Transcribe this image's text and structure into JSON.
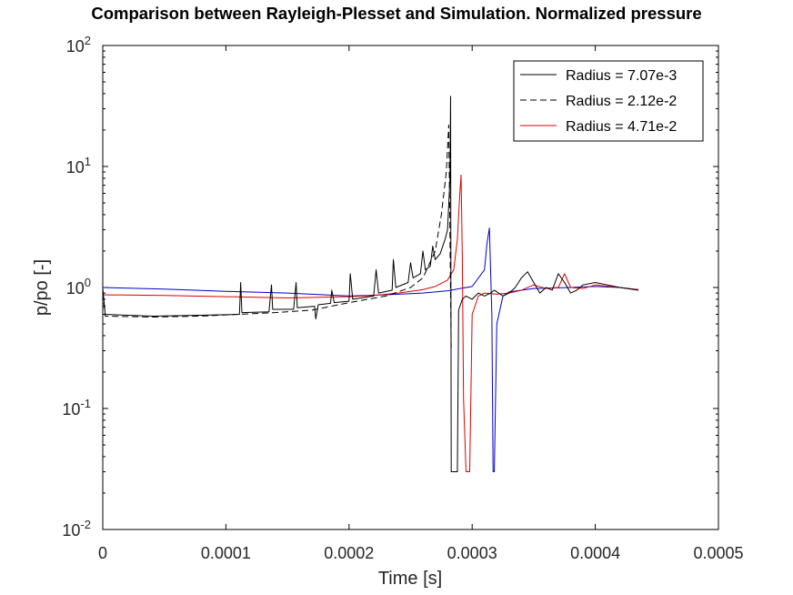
{
  "chart_data": {
    "type": "line",
    "title": "Comparison between Rayleigh-Plesset and Simulation. Normalized pressure",
    "xlabel": "Time [s]",
    "ylabel": "p/po [-]",
    "xlim": [
      0,
      0.0005
    ],
    "ylim": [
      0.01,
      100
    ],
    "yscale": "log",
    "grid": false,
    "legend_position": "top-right",
    "x_ticks": [
      "0",
      "0.0001",
      "0.0002",
      "0.0003",
      "0.0004",
      "0.0005"
    ],
    "y_ticks": [
      {
        "base": "10",
        "exp": "-2"
      },
      {
        "base": "10",
        "exp": "-1"
      },
      {
        "base": "10",
        "exp": "0"
      },
      {
        "base": "10",
        "exp": "1"
      },
      {
        "base": "10",
        "exp": "2"
      }
    ],
    "series": [
      {
        "name": "Radius =  7.07e-3",
        "color": "#000000",
        "dash": "solid",
        "points": [
          [
            0,
            0.99
          ],
          [
            2e-06,
            0.6
          ],
          [
            4e-05,
            0.58
          ],
          [
            8e-05,
            0.59
          ],
          [
            0.000111,
            0.6
          ],
          [
            0.000112,
            1.1
          ],
          [
            0.000113,
            0.62
          ],
          [
            0.000135,
            0.63
          ],
          [
            0.000137,
            1.05
          ],
          [
            0.000138,
            0.66
          ],
          [
            0.000155,
            0.66
          ],
          [
            0.000157,
            1.1
          ],
          [
            0.000158,
            0.68
          ],
          [
            0.000172,
            0.7
          ],
          [
            0.000173,
            0.55
          ],
          [
            0.000175,
            0.72
          ],
          [
            0.000185,
            0.74
          ],
          [
            0.000186,
            0.95
          ],
          [
            0.000188,
            0.75
          ],
          [
            0.0002,
            0.77
          ],
          [
            0.000201,
            1.3
          ],
          [
            0.000203,
            0.8
          ],
          [
            0.00022,
            0.85
          ],
          [
            0.000222,
            1.4
          ],
          [
            0.000224,
            0.9
          ],
          [
            0.000235,
            0.95
          ],
          [
            0.000236,
            1.7
          ],
          [
            0.000238,
            1.0
          ],
          [
            0.000248,
            1.1
          ],
          [
            0.00025,
            1.6
          ],
          [
            0.000252,
            1.2
          ],
          [
            0.000258,
            1.3
          ],
          [
            0.00026,
            2.0
          ],
          [
            0.000262,
            1.4
          ],
          [
            0.000266,
            1.5
          ],
          [
            0.000268,
            2.2
          ],
          [
            0.00027,
            1.7
          ],
          [
            0.000274,
            1.9
          ],
          [
            0.000278,
            2.5
          ],
          [
            0.00028,
            3.0
          ],
          [
            0.000282,
            8.0
          ],
          [
            0.0002825,
            38.0
          ],
          [
            0.000283,
            0.03
          ],
          [
            0.000288,
            0.03
          ],
          [
            0.000289,
            0.65
          ],
          [
            0.000292,
            0.8
          ],
          [
            0.000295,
            0.85
          ],
          [
            0.0003,
            0.8
          ],
          [
            0.000305,
            0.9
          ],
          [
            0.00031,
            0.85
          ],
          [
            0.000315,
            0.9
          ],
          [
            0.000318,
            0.95
          ],
          [
            0.000325,
            0.85
          ],
          [
            0.00033,
            0.9
          ],
          [
            0.000335,
            1.0
          ],
          [
            0.00034,
            1.2
          ],
          [
            0.000345,
            1.35
          ],
          [
            0.00035,
            1.1
          ],
          [
            0.000355,
            0.9
          ],
          [
            0.00036,
            1.0
          ],
          [
            0.000365,
            0.95
          ],
          [
            0.00037,
            1.3
          ],
          [
            0.000375,
            1.1
          ],
          [
            0.00038,
            0.9
          ],
          [
            0.000385,
            0.95
          ],
          [
            0.00039,
            1.05
          ],
          [
            0.0004,
            1.1
          ],
          [
            0.00041,
            1.05
          ],
          [
            0.00042,
            1.0
          ],
          [
            0.000435,
            0.95
          ]
        ]
      },
      {
        "name": "Radius =  2.12e-2",
        "color": "#000000",
        "dash": "dashed",
        "points": [
          [
            0,
            0.9
          ],
          [
            2e-06,
            0.58
          ],
          [
            4e-05,
            0.57
          ],
          [
            8e-05,
            0.58
          ],
          [
            0.00011,
            0.6
          ],
          [
            0.00014,
            0.62
          ],
          [
            0.00017,
            0.65
          ],
          [
            0.0002,
            0.75
          ],
          [
            0.00023,
            0.85
          ],
          [
            0.00025,
            1.0
          ],
          [
            0.00026,
            1.2
          ],
          [
            0.00027,
            2.0
          ],
          [
            0.000275,
            4.0
          ],
          [
            0.000279,
            9.0
          ],
          [
            0.000281,
            22.0
          ],
          [
            0.000283,
            0.3
          ]
        ]
      },
      {
        "name": "Radius =  4.71e-2",
        "color": "#dd0000",
        "dash": "solid",
        "points": [
          [
            0,
            0.87
          ],
          [
            5e-05,
            0.86
          ],
          [
            0.0001,
            0.84
          ],
          [
            0.00015,
            0.82
          ],
          [
            0.0002,
            0.84
          ],
          [
            0.00022,
            0.86
          ],
          [
            0.00024,
            0.9
          ],
          [
            0.00026,
            0.96
          ],
          [
            0.00027,
            1.02
          ],
          [
            0.00028,
            1.15
          ],
          [
            0.000285,
            1.4
          ],
          [
            0.000288,
            2.5
          ],
          [
            0.00029,
            6.0
          ],
          [
            0.000291,
            8.5
          ],
          [
            0.000292,
            1.8
          ],
          [
            0.000293,
            0.12
          ],
          [
            0.000295,
            0.03
          ],
          [
            0.000298,
            0.03
          ],
          [
            0.0003,
            0.6
          ],
          [
            0.000305,
            0.85
          ],
          [
            0.00031,
            0.9
          ],
          [
            0.00032,
            0.88
          ],
          [
            0.00033,
            0.9
          ],
          [
            0.00034,
            0.95
          ],
          [
            0.00035,
            1.05
          ],
          [
            0.00036,
            0.98
          ],
          [
            0.00037,
            1.0
          ],
          [
            0.000375,
            1.3
          ],
          [
            0.00038,
            1.0
          ],
          [
            0.00039,
            0.98
          ],
          [
            0.0004,
            1.05
          ],
          [
            0.00042,
            1.0
          ],
          [
            0.000435,
            0.96
          ]
        ]
      },
      {
        "name": "",
        "color": "#0000cc",
        "dash": "solid",
        "points": [
          [
            0,
            1.0
          ],
          [
            5e-05,
            0.97
          ],
          [
            0.0001,
            0.93
          ],
          [
            0.00015,
            0.9
          ],
          [
            0.0002,
            0.85
          ],
          [
            0.00023,
            0.87
          ],
          [
            0.00026,
            0.9
          ],
          [
            0.00028,
            0.94
          ],
          [
            0.0003,
            1.02
          ],
          [
            0.00031,
            1.4
          ],
          [
            0.000312,
            2.3
          ],
          [
            0.000314,
            3.1
          ],
          [
            0.000316,
            0.6
          ],
          [
            0.000317,
            0.03
          ],
          [
            0.000318,
            0.03
          ],
          [
            0.00032,
            0.5
          ],
          [
            0.000325,
            0.85
          ],
          [
            0.00033,
            0.92
          ],
          [
            0.00035,
            0.98
          ],
          [
            0.00038,
            1.0
          ],
          [
            0.0004,
            1.02
          ],
          [
            0.00042,
            1.0
          ],
          [
            0.000435,
            0.96
          ]
        ]
      }
    ]
  }
}
